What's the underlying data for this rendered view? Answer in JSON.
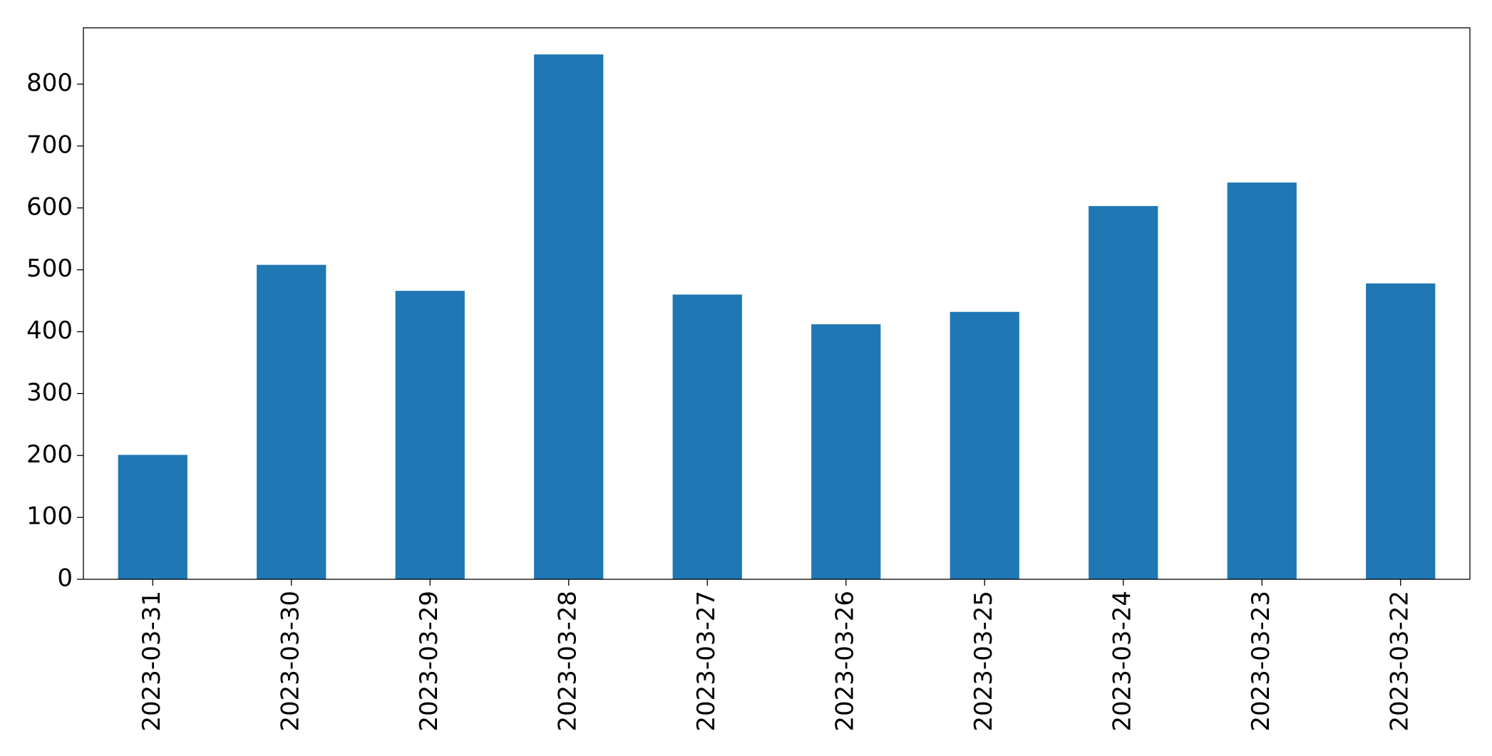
{
  "chart_data": {
    "type": "bar",
    "categories": [
      "2023-03-31",
      "2023-03-30",
      "2023-03-29",
      "2023-03-28",
      "2023-03-27",
      "2023-03-26",
      "2023-03-25",
      "2023-03-24",
      "2023-03-23",
      "2023-03-22"
    ],
    "values": [
      201,
      508,
      466,
      848,
      460,
      412,
      432,
      603,
      641,
      478
    ],
    "color": "#1f77b4",
    "ylim": [
      0,
      891
    ],
    "yticks": [
      0,
      100,
      200,
      300,
      400,
      500,
      600,
      700,
      800
    ],
    "grid": false
  }
}
